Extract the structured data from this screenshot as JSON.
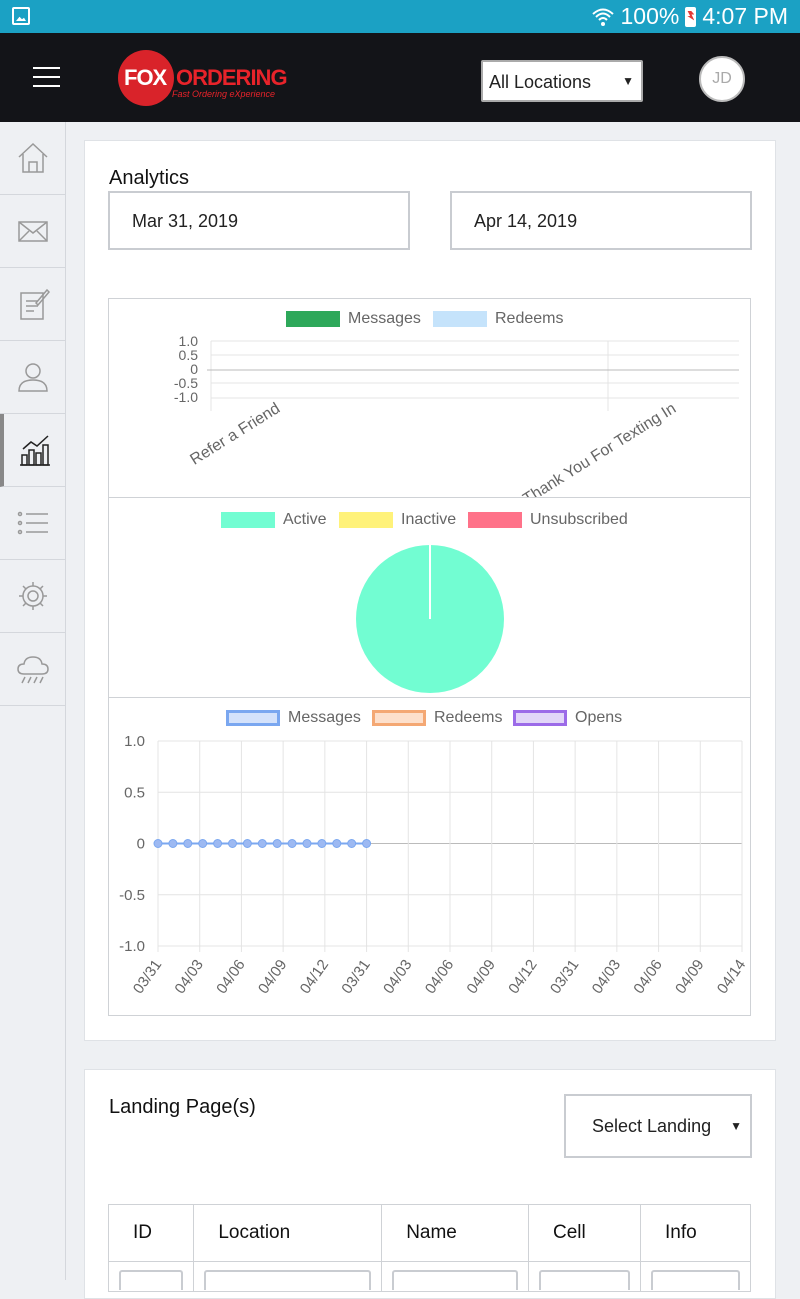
{
  "status_bar": {
    "battery_text": "100%",
    "time": "4:07 PM"
  },
  "header": {
    "logo_fox": "FOX",
    "logo_ordering": "ORDERING",
    "logo_tagline": "Fast Ordering eXperience",
    "location_select": "All Locations",
    "avatar_initials": "JD"
  },
  "sidebar": {
    "items": [
      "home-icon",
      "mail-icon",
      "edit-icon",
      "user-icon",
      "analytics-icon",
      "list-icon",
      "settings-icon",
      "cloud-icon"
    ],
    "active_index": 4
  },
  "analytics": {
    "title": "Analytics",
    "start_date": "Mar 31, 2019",
    "end_date": "Apr 14, 2019"
  },
  "chart_data": [
    {
      "type": "bar",
      "legend": [
        {
          "name": "Messages",
          "color": "#2ea85a"
        },
        {
          "name": "Redeems",
          "color": "#c5e3fb"
        }
      ],
      "categories": [
        "Refer a Friend",
        "Thank You For Texting In"
      ],
      "series": [
        {
          "name": "Messages",
          "values": [
            0,
            0
          ]
        },
        {
          "name": "Redeems",
          "values": [
            0,
            0
          ]
        }
      ],
      "yticks": [
        "1.0",
        "0.5",
        "0",
        "-0.5",
        "-1.0"
      ],
      "ylim": [
        -1,
        1
      ]
    },
    {
      "type": "pie",
      "legend": [
        {
          "name": "Active",
          "color": "#72fdd2"
        },
        {
          "name": "Inactive",
          "color": "#fff27a"
        },
        {
          "name": "Unsubscribed",
          "color": "#ff7289"
        }
      ],
      "values": [
        1,
        0,
        0
      ]
    },
    {
      "type": "line",
      "legend": [
        {
          "name": "Messages",
          "color": "#7aa7f0",
          "fill": "#d4e2fb"
        },
        {
          "name": "Redeems",
          "color": "#f4a874",
          "fill": "#fde0cc"
        },
        {
          "name": "Opens",
          "color": "#9c6be8",
          "fill": "#e2d6f8"
        }
      ],
      "yticks": [
        "1.0",
        "0.5",
        "0",
        "-0.5",
        "-1.0"
      ],
      "ylim": [
        -1,
        1
      ],
      "xticks": [
        "03/31",
        "04/03",
        "04/06",
        "04/09",
        "04/12",
        "03/31",
        "04/03",
        "04/06",
        "04/09",
        "04/12",
        "03/31",
        "04/03",
        "04/06",
        "04/09",
        "04/14"
      ],
      "series": [
        {
          "name": "Messages",
          "values": [
            0,
            0,
            0,
            0,
            0,
            0,
            0,
            0,
            0,
            0,
            0,
            0,
            0,
            0,
            0
          ]
        }
      ]
    }
  ],
  "landing": {
    "title": "Landing Page(s)",
    "select_placeholder": "Select Landing",
    "columns": [
      "ID",
      "Location",
      "Name",
      "Cell",
      "Info"
    ]
  }
}
